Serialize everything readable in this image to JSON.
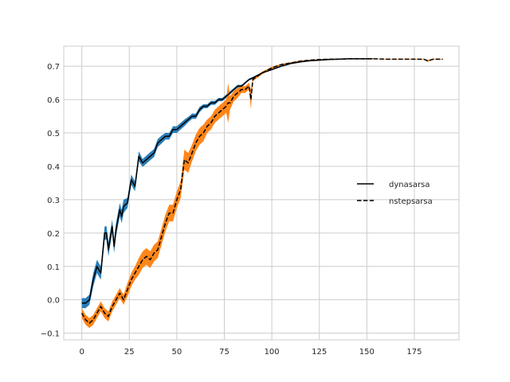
{
  "chart_data": {
    "type": "line",
    "title": "",
    "xlabel": "",
    "ylabel": "",
    "xlim": [
      -9.5,
      198.5
    ],
    "ylim": [
      -0.12,
      0.76
    ],
    "xticks": [
      0,
      25,
      50,
      75,
      100,
      125,
      150,
      175
    ],
    "yticks": [
      -0.1,
      0.0,
      0.1,
      0.2,
      0.3,
      0.4,
      0.5,
      0.6,
      0.7
    ],
    "ytick_labels": [
      "−0.1",
      "0.0",
      "0.1",
      "0.2",
      "0.3",
      "0.4",
      "0.5",
      "0.6",
      "0.7"
    ],
    "grid": true,
    "legend_position": "center-right",
    "series": [
      {
        "name": "dynasarsa",
        "line_style": "solid",
        "line_color": "#000000",
        "band_color": "#1f77b4",
        "x": [
          0,
          2,
          4,
          6,
          8,
          10,
          12,
          13,
          14,
          16,
          17,
          18,
          20,
          21,
          22,
          24,
          26,
          27,
          28,
          30,
          32,
          34,
          36,
          38,
          40,
          42,
          44,
          46,
          48,
          50,
          52,
          54,
          56,
          58,
          60,
          62,
          64,
          66,
          68,
          70,
          72,
          74,
          76,
          78,
          80,
          82,
          84,
          86,
          88,
          90,
          95,
          100,
          105,
          110,
          115,
          120,
          125,
          130,
          135,
          140,
          145,
          150,
          153
        ],
        "y": [
          -0.01,
          -0.01,
          0.0,
          0.06,
          0.1,
          0.08,
          0.2,
          0.2,
          0.15,
          0.22,
          0.16,
          0.21,
          0.27,
          0.25,
          0.28,
          0.29,
          0.36,
          0.35,
          0.34,
          0.43,
          0.41,
          0.42,
          0.43,
          0.44,
          0.47,
          0.48,
          0.49,
          0.49,
          0.51,
          0.51,
          0.52,
          0.53,
          0.54,
          0.55,
          0.55,
          0.57,
          0.58,
          0.58,
          0.59,
          0.59,
          0.6,
          0.6,
          0.61,
          0.62,
          0.63,
          0.64,
          0.64,
          0.65,
          0.66,
          0.665,
          0.68,
          0.69,
          0.7,
          0.708,
          0.713,
          0.716,
          0.718,
          0.72,
          0.721,
          0.722,
          0.722,
          0.722,
          0.722
        ],
        "band": [
          0.015,
          0.015,
          0.015,
          0.02,
          0.02,
          0.02,
          0.02,
          0.02,
          0.02,
          0.02,
          0.02,
          0.02,
          0.02,
          0.02,
          0.02,
          0.015,
          0.015,
          0.015,
          0.015,
          0.015,
          0.012,
          0.012,
          0.012,
          0.012,
          0.012,
          0.012,
          0.01,
          0.01,
          0.01,
          0.01,
          0.01,
          0.01,
          0.008,
          0.008,
          0.008,
          0.008,
          0.006,
          0.006,
          0.006,
          0.006,
          0.005,
          0.005,
          0.005,
          0.005,
          0.004,
          0.004,
          0.004,
          0.003,
          0.003,
          0.003,
          0.002,
          0.002,
          0.002,
          0.002,
          0.002,
          0.001,
          0.001,
          0.001,
          0.001,
          0.001,
          0.001,
          0.001,
          0.001
        ]
      },
      {
        "name": "nstepsarsa",
        "line_style": "dashed",
        "line_color": "#000000",
        "band_color": "#ff7f0e",
        "x": [
          0,
          2,
          4,
          6,
          8,
          10,
          12,
          14,
          16,
          18,
          20,
          22,
          24,
          26,
          28,
          30,
          32,
          34,
          36,
          38,
          40,
          42,
          44,
          46,
          48,
          50,
          52,
          54,
          56,
          58,
          60,
          62,
          64,
          66,
          68,
          70,
          72,
          74,
          76,
          77,
          78,
          80,
          82,
          84,
          86,
          88,
          89,
          90,
          95,
          100,
          105,
          110,
          115,
          120,
          125,
          130,
          135,
          140,
          145,
          150,
          155,
          160,
          165,
          170,
          175,
          180,
          182,
          185,
          190
        ],
        "y": [
          -0.04,
          -0.06,
          -0.07,
          -0.06,
          -0.04,
          -0.02,
          -0.04,
          -0.05,
          -0.02,
          0.0,
          0.02,
          0.0,
          0.03,
          0.06,
          0.08,
          0.1,
          0.12,
          0.13,
          0.12,
          0.14,
          0.15,
          0.19,
          0.23,
          0.26,
          0.26,
          0.3,
          0.33,
          0.42,
          0.41,
          0.44,
          0.47,
          0.49,
          0.5,
          0.52,
          0.53,
          0.55,
          0.56,
          0.57,
          0.58,
          0.59,
          0.59,
          0.61,
          0.62,
          0.63,
          0.63,
          0.64,
          0.6,
          0.66,
          0.68,
          0.695,
          0.705,
          0.71,
          0.715,
          0.718,
          0.72,
          0.721,
          0.721,
          0.722,
          0.722,
          0.722,
          0.722,
          0.721,
          0.721,
          0.721,
          0.721,
          0.721,
          0.716,
          0.721,
          0.721
        ],
        "band": [
          0.015,
          0.015,
          0.015,
          0.015,
          0.015,
          0.015,
          0.015,
          0.015,
          0.015,
          0.015,
          0.015,
          0.015,
          0.02,
          0.02,
          0.02,
          0.025,
          0.025,
          0.025,
          0.025,
          0.025,
          0.025,
          0.025,
          0.025,
          0.025,
          0.025,
          0.025,
          0.025,
          0.03,
          0.03,
          0.025,
          0.025,
          0.025,
          0.025,
          0.02,
          0.02,
          0.02,
          0.02,
          0.02,
          0.02,
          0.06,
          0.02,
          0.015,
          0.015,
          0.01,
          0.01,
          0.01,
          0.03,
          0.005,
          0.004,
          0.003,
          0.002,
          0.002,
          0.002,
          0.001,
          0.001,
          0.001,
          0.001,
          0.001,
          0.001,
          0.001,
          0.001,
          0.001,
          0.001,
          0.001,
          0.001,
          0.001,
          0.003,
          0.001,
          0.001
        ]
      }
    ]
  }
}
